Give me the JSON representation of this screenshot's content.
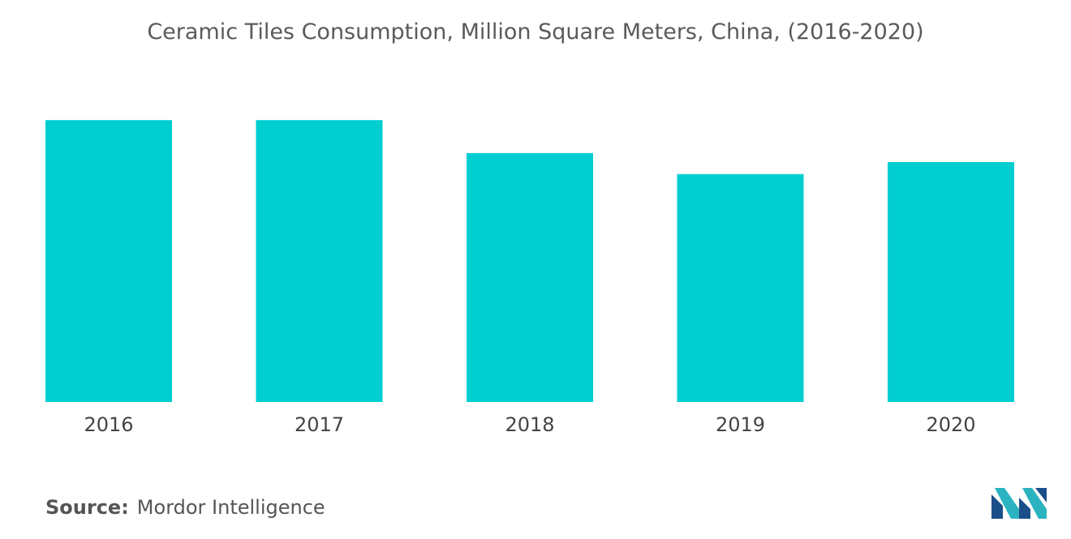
{
  "chart_data": {
    "type": "bar",
    "title": "Ceramic Tiles Consumption, Million Square Meters, China, (2016-2020)",
    "categories": [
      "2016",
      "2017",
      "2018",
      "2019",
      "2020"
    ],
    "values": [
      9400,
      9400,
      8300,
      7600,
      8000
    ],
    "xlabel": "",
    "ylabel": "",
    "ylim": [
      0,
      10000
    ],
    "grid": false,
    "legend": "none",
    "bar_color": "#00ced1"
  },
  "source": {
    "label": "Source:",
    "text": "Mordor Intelligence"
  },
  "logo": {
    "icon": "mordor-intelligence-logo",
    "colors": [
      "#1b4f8a",
      "#2bb3c0"
    ]
  }
}
